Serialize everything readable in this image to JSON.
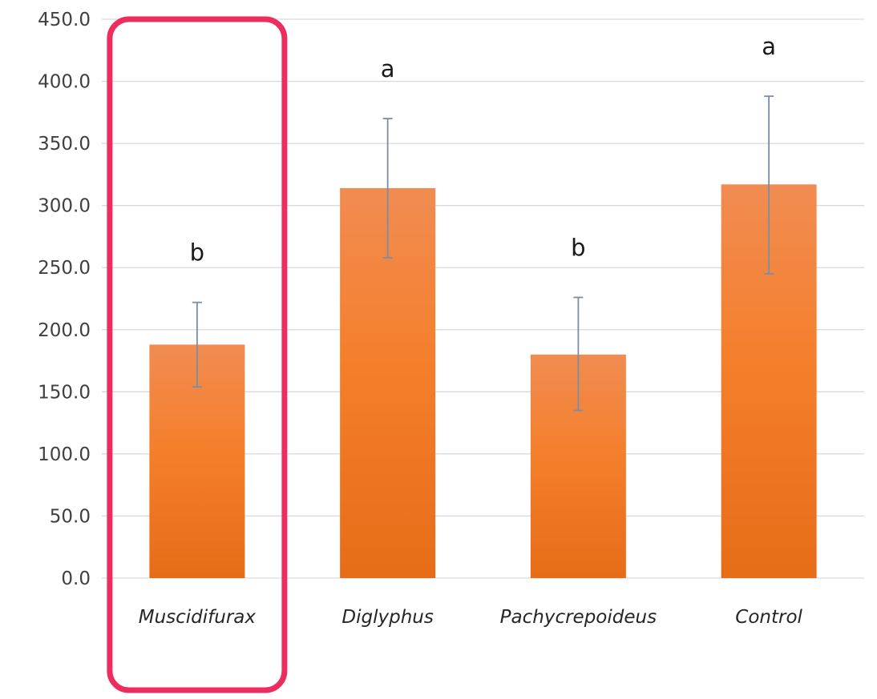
{
  "chart_data": {
    "type": "bar",
    "title": "",
    "xlabel": "",
    "ylabel": "",
    "ylim": [
      0,
      450
    ],
    "yticks": [
      "0.0",
      "50.0",
      "100.0",
      "150.0",
      "200.0",
      "250.0",
      "300.0",
      "350.0",
      "400.0",
      "450.0"
    ],
    "grid": true,
    "categories": [
      "Muscidifurax",
      "Diglyphus",
      "Pachycrepoideus",
      "Control"
    ],
    "series": [
      {
        "values": [
          188,
          314,
          180,
          317
        ],
        "error_low": [
          154,
          258,
          135,
          245
        ],
        "error_high": [
          222,
          370,
          226,
          388
        ],
        "color": "#f07c2a"
      }
    ],
    "annotations": [
      "b",
      "a",
      "b",
      "a"
    ],
    "highlight": {
      "category": "Muscidifurax",
      "color": "#ec2d5e"
    }
  }
}
